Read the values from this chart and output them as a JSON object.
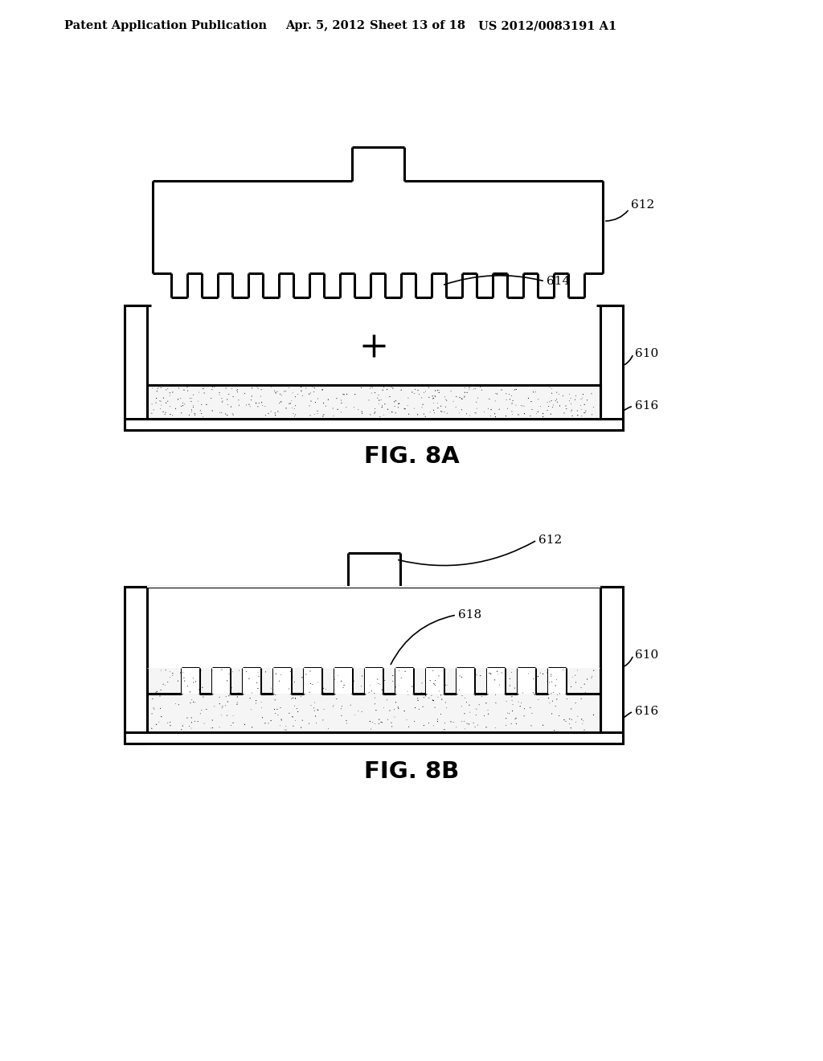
{
  "bg_color": "#ffffff",
  "header_text": "Patent Application Publication",
  "header_date": "Apr. 5, 2012",
  "header_sheet": "Sheet 13 of 18",
  "header_patent": "US 2012/0083191 A1",
  "fig8a_label": "FIG. 8A",
  "fig8b_label": "FIG. 8B"
}
